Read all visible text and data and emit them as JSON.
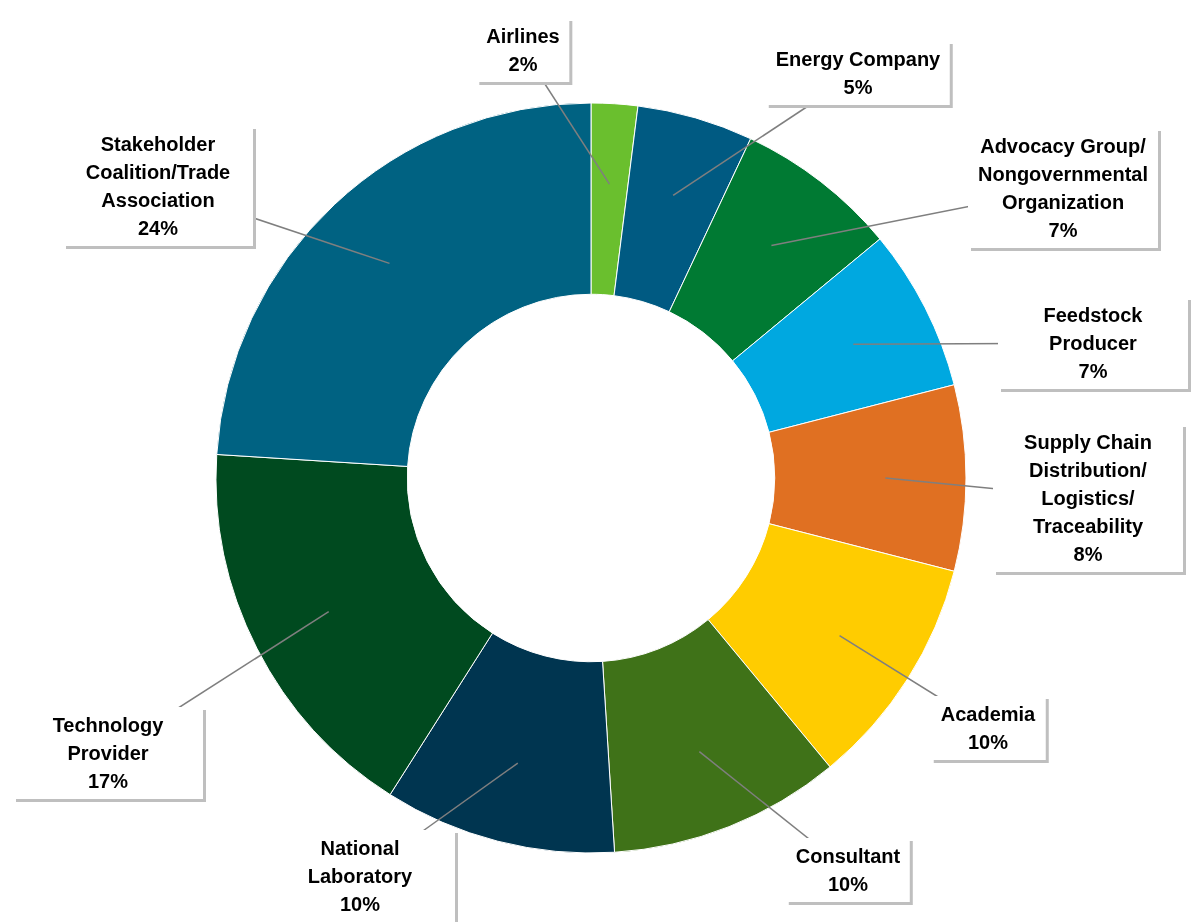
{
  "chart_data": {
    "type": "donut",
    "categories": [
      "Airlines",
      "Energy Company",
      "Advocacy Group/ Nongovernmental Organization",
      "Feedstock Producer",
      "Supply Chain Distribution/ Logistics/ Traceability",
      "Academia",
      "Consultant",
      "National Laboratory",
      "Technology Provider",
      "Stakeholder Coalition/Trade Association"
    ],
    "values": [
      2,
      5,
      7,
      7,
      8,
      10,
      10,
      10,
      17,
      24
    ],
    "value_labels": [
      "2%",
      "5%",
      "7%",
      "7%",
      "8%",
      "10%",
      "10%",
      "10%",
      "17%",
      "24%"
    ],
    "colors": [
      "#6abf2e",
      "#005a82",
      "#007a33",
      "#00a8e0",
      "#e07022",
      "#ffcc00",
      "#3f7218",
      "#003550",
      "#004a1f",
      "#006282"
    ],
    "legend": false
  }
}
